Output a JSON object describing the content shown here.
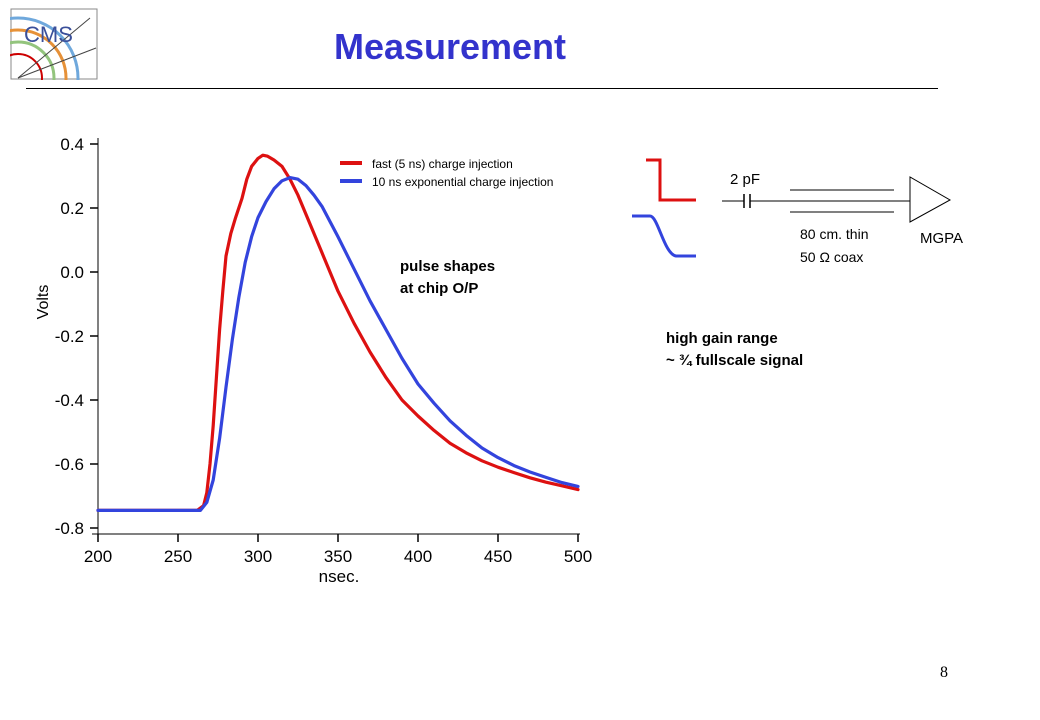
{
  "slide": {
    "title": "Measurement",
    "logo_text": "CMS",
    "page_number": "8",
    "annotations": {
      "pulse_line1": "pulse shapes",
      "pulse_line2": "at chip O/P",
      "gain_line1": "high gain range",
      "gain_line2": "~ ¾ fullscale signal"
    },
    "circuit": {
      "capacitor_label": "2 pF",
      "cable_line1": "80 cm. thin",
      "cable_line2": "50 Ω coax",
      "amp_label": "MGPA",
      "colors": {
        "fast": "#dd1111",
        "slow": "#3344dd"
      }
    }
  },
  "chart_data": {
    "type": "line",
    "title": "",
    "xlabel": "nsec.",
    "ylabel": "Volts",
    "xlim": [
      200,
      500
    ],
    "ylim": [
      -0.8,
      0.4
    ],
    "xticks": [
      "200",
      "250",
      "300",
      "350",
      "400",
      "450",
      "500"
    ],
    "yticks": [
      "0.4",
      "0.2",
      "0.0",
      "-0.2",
      "-0.4",
      "-0.6",
      "-0.8"
    ],
    "legend_position": "top-right",
    "series": [
      {
        "name": "fast (5 ns) charge injection",
        "color": "#dd1111",
        "x": [
          200,
          262,
          266,
          268,
          270,
          272,
          274,
          276,
          278,
          280,
          283,
          286,
          290,
          293,
          296,
          300,
          303,
          306,
          310,
          315,
          320,
          325,
          330,
          340,
          350,
          360,
          370,
          380,
          390,
          400,
          410,
          420,
          430,
          440,
          450,
          460,
          470,
          480,
          490,
          500
        ],
        "y": [
          -0.745,
          -0.745,
          -0.73,
          -0.69,
          -0.6,
          -0.48,
          -0.33,
          -0.18,
          -0.06,
          0.05,
          0.12,
          0.17,
          0.23,
          0.29,
          0.33,
          0.355,
          0.365,
          0.362,
          0.35,
          0.33,
          0.29,
          0.24,
          0.18,
          0.06,
          -0.06,
          -0.16,
          -0.25,
          -0.33,
          -0.4,
          -0.45,
          -0.495,
          -0.535,
          -0.565,
          -0.59,
          -0.61,
          -0.627,
          -0.643,
          -0.657,
          -0.668,
          -0.68
        ]
      },
      {
        "name": "10 ns exponential charge injection",
        "color": "#3344dd",
        "x": [
          200,
          264,
          268,
          272,
          276,
          280,
          284,
          288,
          292,
          296,
          300,
          305,
          310,
          315,
          320,
          325,
          330,
          335,
          340,
          350,
          360,
          370,
          380,
          390,
          400,
          410,
          420,
          430,
          440,
          450,
          460,
          470,
          480,
          490,
          500
        ],
        "y": [
          -0.745,
          -0.745,
          -0.72,
          -0.65,
          -0.52,
          -0.36,
          -0.21,
          -0.08,
          0.03,
          0.11,
          0.17,
          0.22,
          0.26,
          0.285,
          0.295,
          0.29,
          0.27,
          0.24,
          0.205,
          0.11,
          0.01,
          -0.09,
          -0.18,
          -0.27,
          -0.35,
          -0.41,
          -0.465,
          -0.51,
          -0.55,
          -0.58,
          -0.605,
          -0.625,
          -0.642,
          -0.658,
          -0.67
        ]
      }
    ]
  }
}
